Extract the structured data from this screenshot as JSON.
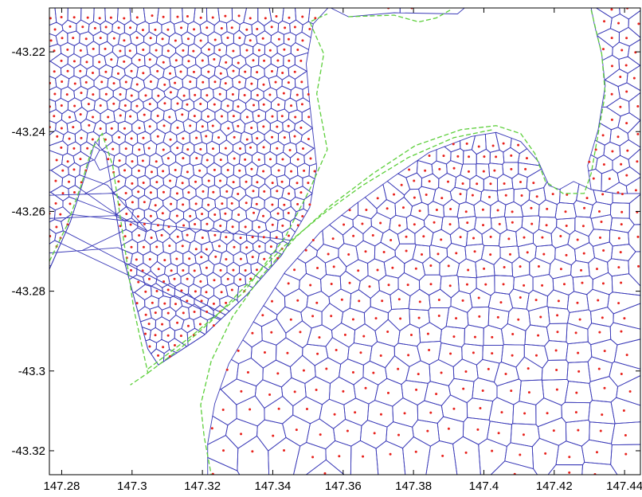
{
  "chart_data": {
    "type": "scatter",
    "title": "",
    "xlabel": "",
    "ylabel": "",
    "xlim": [
      147.2765,
      147.4445
    ],
    "ylim": [
      -43.326,
      -43.209
    ],
    "xticks": [
      147.28,
      147.3,
      147.32,
      147.34,
      147.36,
      147.38,
      147.4,
      147.42,
      147.44
    ],
    "xtick_labels": [
      "147.28",
      "147.3",
      "147.32",
      "147.34",
      "147.36",
      "147.38",
      "147.4",
      "147.42",
      "147.44"
    ],
    "yticks": [
      -43.22,
      -43.24,
      -43.26,
      -43.28,
      -43.3,
      -43.32
    ],
    "ytick_labels": [
      "-43.22",
      "-43.24",
      "-43.26",
      "-43.28",
      "-43.3",
      "-43.32"
    ],
    "grid": false,
    "legend": "none",
    "series": [
      {
        "kind": "voronoi-mesh-cell-edges",
        "color": "#3a3ab8"
      },
      {
        "kind": "cell-centers",
        "color": "#e8221c"
      },
      {
        "kind": "coastline-dashed",
        "color": "#5ccf3a"
      }
    ],
    "regions": [
      {
        "id": "west-peninsula",
        "spacing_start": 0.0036,
        "spacing_end": 0.0036,
        "boundary": [
          [
            147.2765,
            -43.209
          ],
          [
            147.3557,
            -43.209
          ],
          [
            147.3515,
            -43.213
          ],
          [
            147.3495,
            -43.223
          ],
          [
            147.3505,
            -43.233
          ],
          [
            147.3515,
            -43.241
          ],
          [
            147.3525,
            -43.249
          ],
          [
            147.3505,
            -43.259
          ],
          [
            147.3425,
            -43.271
          ],
          [
            147.3325,
            -43.281
          ],
          [
            147.3205,
            -43.291
          ],
          [
            147.3075,
            -43.2985
          ],
          [
            147.3045,
            -43.2945
          ],
          [
            147.2975,
            -43.2715
          ],
          [
            147.2945,
            -43.2555
          ],
          [
            147.2925,
            -43.2455
          ],
          [
            147.2895,
            -43.2425
          ],
          [
            147.2865,
            -43.2515
          ],
          [
            147.2825,
            -43.2625
          ],
          [
            147.2765,
            -43.2745
          ]
        ]
      },
      {
        "id": "north-sliver",
        "spacing_start": 0.0036,
        "spacing_end": 0.0036,
        "boundary": [
          [
            147.3565,
            -43.209
          ],
          [
            147.3945,
            -43.209
          ],
          [
            147.3925,
            -43.2105
          ],
          [
            147.3745,
            -43.2102
          ],
          [
            147.3615,
            -43.2112
          ]
        ]
      },
      {
        "id": "northeast-strip",
        "spacing_start": 0.0043,
        "spacing_end": 0.0052,
        "boundary": [
          [
            147.4305,
            -43.209
          ],
          [
            147.4445,
            -43.209
          ],
          [
            147.4445,
            -43.2555
          ],
          [
            147.4375,
            -43.2555
          ],
          [
            147.4305,
            -43.2545
          ],
          [
            147.4295,
            -43.2485
          ],
          [
            147.4325,
            -43.2395
          ],
          [
            147.4345,
            -43.2285
          ],
          [
            147.4335,
            -43.2205
          ],
          [
            147.4315,
            -43.2135
          ]
        ]
      },
      {
        "id": "southeast-domain",
        "spacing_start": 0.0036,
        "spacing_end": 0.0085,
        "boundary": [
          [
            147.4445,
            -43.2555
          ],
          [
            147.4375,
            -43.2555
          ],
          [
            147.4305,
            -43.2545
          ],
          [
            147.4255,
            -43.2525
          ],
          [
            147.4215,
            -43.2545
          ],
          [
            147.4185,
            -43.2535
          ],
          [
            147.4155,
            -43.2475
          ],
          [
            147.4105,
            -43.2425
          ],
          [
            147.4035,
            -43.2402
          ],
          [
            147.3965,
            -43.2412
          ],
          [
            147.3845,
            -43.2452
          ],
          [
            147.3745,
            -43.2512
          ],
          [
            147.3635,
            -43.2582
          ],
          [
            147.3535,
            -43.2652
          ],
          [
            147.3435,
            -43.2752
          ],
          [
            147.3355,
            -43.2862
          ],
          [
            147.3275,
            -43.2982
          ],
          [
            147.3235,
            -43.3082
          ],
          [
            147.3215,
            -43.3182
          ],
          [
            147.3215,
            -43.326
          ],
          [
            147.4445,
            -43.326
          ]
        ]
      }
    ],
    "coastline": [
      [
        [
          147.2765,
          -43.2725
        ],
        [
          147.2815,
          -43.2635
        ],
        [
          147.2855,
          -43.2535
        ],
        [
          147.2885,
          -43.2445
        ],
        [
          147.2915,
          -43.2405
        ],
        [
          147.2945,
          -43.2485
        ],
        [
          147.2965,
          -43.2605
        ],
        [
          147.2985,
          -43.2725
        ],
        [
          147.3005,
          -43.2845
        ],
        [
          147.3025,
          -43.2925
        ],
        [
          147.3045,
          -43.3005
        ],
        [
          147.2995,
          -43.3035
        ]
      ],
      [
        [
          147.3045,
          -43.2995
        ],
        [
          147.3165,
          -43.2915
        ],
        [
          147.3315,
          -43.2805
        ],
        [
          147.3435,
          -43.2665
        ],
        [
          147.3505,
          -43.2545
        ],
        [
          147.3555,
          -43.2445
        ],
        [
          147.3525,
          -43.2305
        ],
        [
          147.3545,
          -43.2205
        ],
        [
          147.3505,
          -43.2125
        ],
        [
          147.3555,
          -43.2105
        ]
      ],
      [
        [
          147.3615,
          -43.2112
        ],
        [
          147.3745,
          -43.2108
        ],
        [
          147.3815,
          -43.2125
        ],
        [
          147.3865,
          -43.2115
        ],
        [
          147.3905,
          -43.2095
        ]
      ],
      [
        [
          147.4305,
          -43.2095
        ],
        [
          147.4335,
          -43.2205
        ],
        [
          147.4345,
          -43.2305
        ],
        [
          147.4325,
          -43.2405
        ],
        [
          147.4305,
          -43.2505
        ],
        [
          147.4285,
          -43.2555
        ],
        [
          147.4225,
          -43.2555
        ],
        [
          147.4175,
          -43.2525
        ],
        [
          147.4145,
          -43.2455
        ],
        [
          147.4105,
          -43.2405
        ],
        [
          147.4035,
          -43.2385
        ],
        [
          147.3935,
          -43.2395
        ],
        [
          147.3805,
          -43.2435
        ],
        [
          147.3685,
          -43.2505
        ],
        [
          147.3565,
          -43.2585
        ],
        [
          147.3465,
          -43.2665
        ],
        [
          147.3365,
          -43.2765
        ],
        [
          147.3285,
          -43.2865
        ],
        [
          147.3225,
          -43.2975
        ],
        [
          147.3195,
          -43.3085
        ],
        [
          147.3205,
          -43.3165
        ],
        [
          147.3225,
          -43.326
        ]
      ],
      [
        [
          147.3045,
          -43.3005
        ],
        [
          147.3135,
          -43.2945
        ],
        [
          147.3225,
          -43.2875
        ],
        [
          147.3325,
          -43.2785
        ],
        [
          147.3435,
          -43.2685
        ],
        [
          147.3545,
          -43.2605
        ],
        [
          147.3655,
          -43.2535
        ],
        [
          147.3785,
          -43.2465
        ],
        [
          147.3915,
          -43.2415
        ],
        [
          147.4025,
          -43.2395
        ]
      ]
    ]
  }
}
